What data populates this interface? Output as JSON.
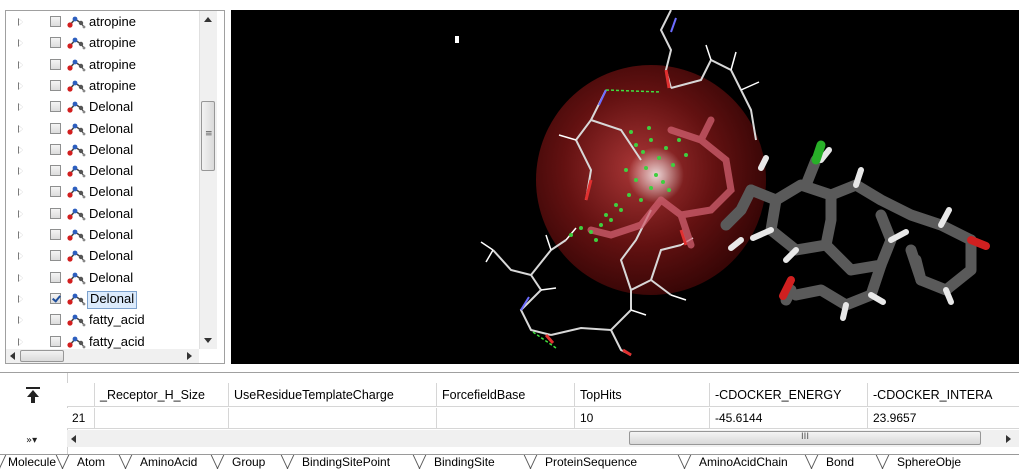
{
  "tree": {
    "items": [
      {
        "label": "atropine",
        "checked": false
      },
      {
        "label": "atropine",
        "checked": false
      },
      {
        "label": "atropine",
        "checked": false
      },
      {
        "label": "atropine",
        "checked": false
      },
      {
        "label": "Delonal",
        "checked": false
      },
      {
        "label": "Delonal",
        "checked": false
      },
      {
        "label": "Delonal",
        "checked": false
      },
      {
        "label": "Delonal",
        "checked": false
      },
      {
        "label": "Delonal",
        "checked": false
      },
      {
        "label": "Delonal",
        "checked": false
      },
      {
        "label": "Delonal",
        "checked": false
      },
      {
        "label": "Delonal",
        "checked": false
      },
      {
        "label": "Delonal",
        "checked": false
      },
      {
        "label": "Delonal",
        "checked": true
      },
      {
        "label": "fatty_acid",
        "checked": false
      },
      {
        "label": "fatty_acid",
        "checked": false
      }
    ],
    "vscroll_grip": "≡"
  },
  "viewer": {
    "background": "#000000",
    "binding_sphere_color": "#8b1a1a",
    "pose_points_color": "#3fcf3f"
  },
  "grid": {
    "columns": [
      "_Receptor_H_Size",
      "UseResidueTemplateCharge",
      "ForcefieldBase",
      "TopHits",
      "-CDOCKER_ENERGY",
      "-CDOCKER_INTERA"
    ],
    "rows": [
      {
        "index": "21",
        "cells": [
          "",
          "",
          "",
          "10",
          "-45.6144",
          "23.9657"
        ]
      }
    ],
    "scroll_grip": "III"
  },
  "tabs": [
    "Molecule",
    "Atom",
    "AminoAcid",
    "Group",
    "BindingSitePoint",
    "BindingSite",
    "ProteinSequence",
    "AminoAcidChain",
    "Bond",
    "SphereObje"
  ]
}
